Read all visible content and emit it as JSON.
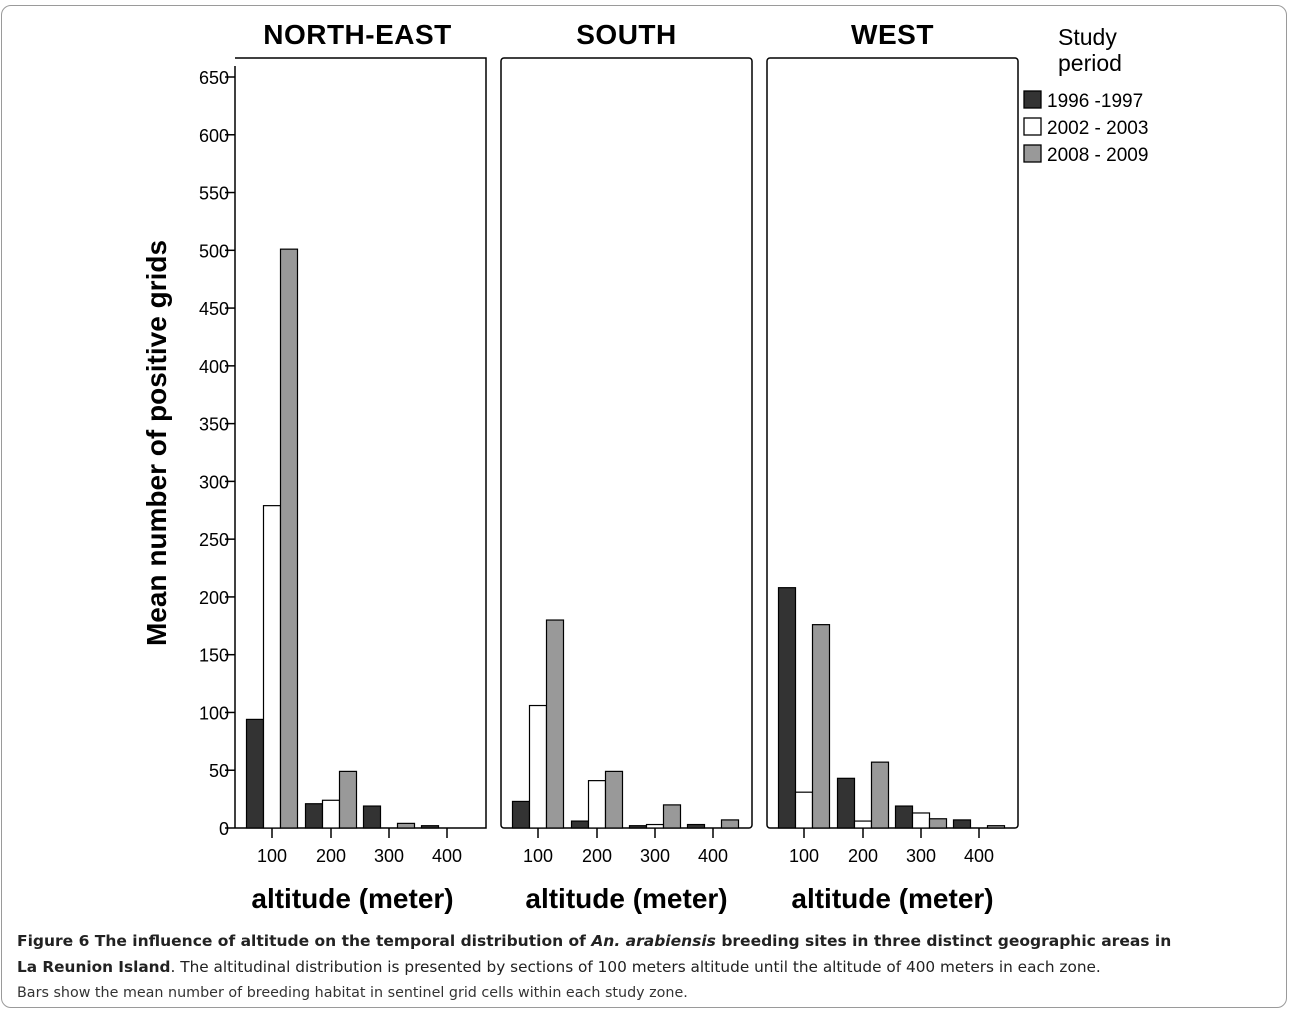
{
  "chart_data": {
    "type": "bar",
    "ylabel": "Mean number of positive grids",
    "xlabel": "altitude (meter)",
    "ylim": [
      0,
      650
    ],
    "yticks": [
      0,
      50,
      100,
      150,
      200,
      250,
      300,
      350,
      400,
      450,
      500,
      550,
      600,
      650
    ],
    "categories": [
      "100",
      "200",
      "300",
      "400"
    ],
    "legend": {
      "title": [
        "Study",
        "period"
      ],
      "placement": "right",
      "entries": [
        {
          "name": "1996 -1997",
          "color": "#333333"
        },
        {
          "name": "2002 - 2003",
          "color": "#ffffff"
        },
        {
          "name": "2008 - 2009",
          "color": "#999999"
        }
      ]
    },
    "panels": [
      {
        "title": "NORTH-EAST",
        "series": [
          {
            "name": "1996 -1997",
            "values": [
              94,
              21,
              19,
              2
            ]
          },
          {
            "name": "2002 - 2003",
            "values": [
              279,
              24,
              0,
              0
            ]
          },
          {
            "name": "2008 - 2009",
            "values": [
              501,
              49,
              4,
              0
            ]
          }
        ]
      },
      {
        "title": "SOUTH",
        "series": [
          {
            "name": "1996 -1997",
            "values": [
              23,
              6,
              2,
              3
            ]
          },
          {
            "name": "2002 - 2003",
            "values": [
              106,
              41,
              3,
              0
            ]
          },
          {
            "name": "2008 - 2009",
            "values": [
              180,
              49,
              20,
              7
            ]
          }
        ]
      },
      {
        "title": "WEST",
        "series": [
          {
            "name": "1996 -1997",
            "values": [
              208,
              43,
              19,
              7
            ]
          },
          {
            "name": "2002 - 2003",
            "values": [
              31,
              6,
              13,
              0
            ]
          },
          {
            "name": "2008 - 2009",
            "values": [
              176,
              57,
              8,
              2
            ]
          }
        ]
      }
    ]
  },
  "caption": {
    "bold_prefix": "Figure 6 The influence of altitude on the temporal distribution of ",
    "bold_italic": "An. arabiensis",
    "bold_suffix_line1": " breeding sites in three distinct geographic areas in",
    "bold_line2": "La Reunion Island",
    "line2_rest": ". The altitudinal distribution is presented by sections of 100 meters altitude until the altitude of 400 meters in each zone.",
    "line3": "Bars show the mean number of breeding habitat in sentinel grid cells within each study zone."
  }
}
